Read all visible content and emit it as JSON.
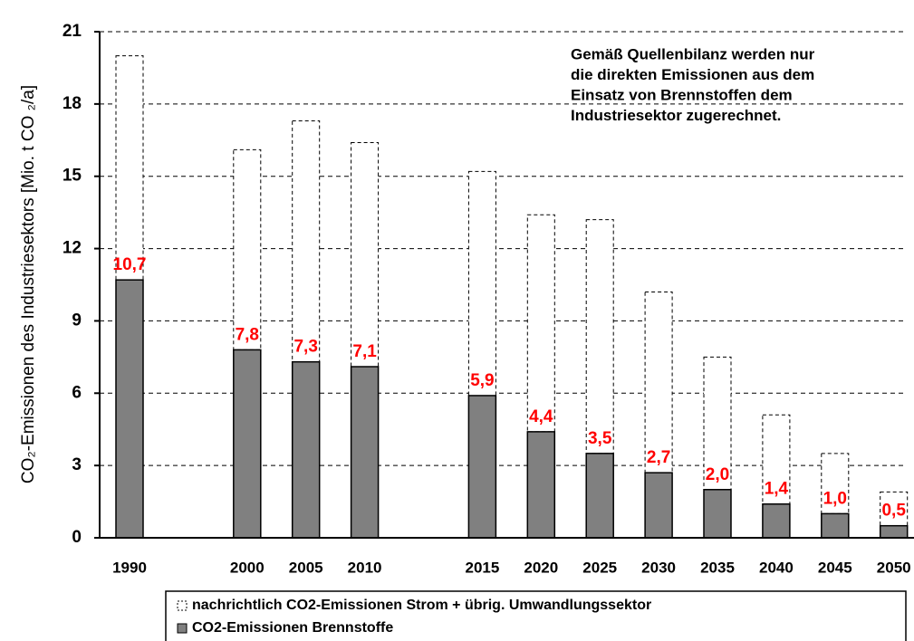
{
  "chart_data": {
    "type": "stacked_bar",
    "ylabel": "CO₂-Emissionen des Industriesektors [Mio. t CO ₂/a]",
    "annotation": [
      "Gemäß Quellenbilanz werden nur",
      "die direkten Emissionen aus dem",
      "Einsatz von Brennstoffen dem",
      "Industriesektor zugerechnet."
    ],
    "categories": [
      "1990",
      null,
      "2000",
      "2005",
      "2010",
      null,
      "2015",
      "2020",
      "2025",
      "2030",
      "2035",
      "2040",
      "2045",
      "2050"
    ],
    "series": [
      {
        "name": "CO2-Emissionen Brennstoffe",
        "color": "#808080",
        "values": [
          10.7,
          null,
          7.8,
          7.3,
          7.1,
          null,
          5.9,
          4.4,
          3.5,
          2.7,
          2.0,
          1.4,
          1.0,
          0.5
        ],
        "value_labels": [
          "10,7",
          null,
          "7,8",
          "7,3",
          "7,1",
          null,
          "5,9",
          "4,4",
          "3,5",
          "2,7",
          "2,0",
          "1,4",
          "1,0",
          "0,5"
        ]
      },
      {
        "name": "nachrichtlich CO2-Emissionen Strom + übrig. Umwandlungssektor",
        "color": "#ffffff",
        "values": [
          9.3,
          null,
          8.3,
          10.0,
          9.3,
          null,
          9.3,
          9.0,
          9.7,
          7.5,
          5.5,
          3.7,
          2.5,
          1.4
        ]
      }
    ],
    "label_color": "#ff0000",
    "ylim": [
      0,
      21
    ],
    "yticks": [
      0,
      3,
      6,
      9,
      12,
      15,
      18,
      21
    ],
    "grid": true
  }
}
